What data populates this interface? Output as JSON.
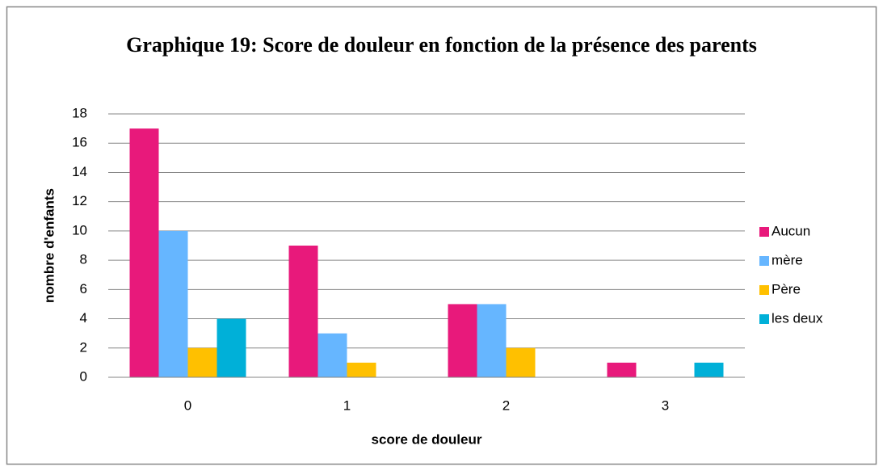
{
  "chart_data": {
    "type": "bar",
    "title": "Graphique 19: Score de douleur en fonction de la présence des parents",
    "x_label": "score de douleur",
    "y_label": "nombre d'enfants",
    "categories": [
      "0",
      "1",
      "2",
      "3"
    ],
    "series": [
      {
        "name": "Aucun",
        "color": "#e8197b",
        "values": [
          17,
          9,
          5,
          1
        ]
      },
      {
        "name": "mère",
        "color": "#66b6ff",
        "values": [
          10,
          3,
          5,
          0
        ]
      },
      {
        "name": "Père",
        "color": "#ffc000",
        "values": [
          2,
          1,
          2,
          0
        ]
      },
      {
        "name": "les deux",
        "color": "#00b0d8",
        "values": [
          4,
          0,
          0,
          1
        ]
      }
    ],
    "ylim": [
      0,
      18
    ],
    "yticks": [
      0,
      2,
      4,
      6,
      8,
      10,
      12,
      14,
      16,
      18
    ],
    "grid": true,
    "legend": "right"
  }
}
